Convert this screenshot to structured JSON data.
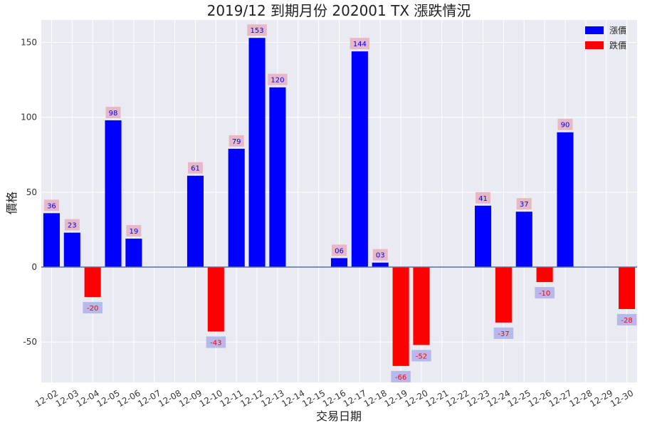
{
  "chart_data": {
    "type": "bar",
    "title": "2019/12 到期月份 202001 TX 漲跌情況",
    "xlabel": "交易日期",
    "ylabel": "價格",
    "categories": [
      "12-02",
      "12-03",
      "12-04",
      "12-05",
      "12-06",
      "12-07",
      "12-08",
      "12-09",
      "12-10",
      "12-11",
      "12-12",
      "12-13",
      "12-14",
      "12-15",
      "12-16",
      "12-17",
      "12-18",
      "12-19",
      "12-20",
      "12-21",
      "12-22",
      "12-23",
      "12-24",
      "12-25",
      "12-26",
      "12-27",
      "12-28",
      "12-29",
      "12-30"
    ],
    "series": [
      {
        "name": "漲價",
        "color": "#0000ff",
        "values": [
          36,
          23,
          0,
          98,
          19,
          0,
          0,
          61,
          0,
          79,
          153,
          120,
          0,
          0,
          6,
          144,
          3,
          0,
          0,
          0,
          0,
          41,
          0,
          37,
          0,
          90,
          0,
          0,
          0
        ]
      },
      {
        "name": "跌價",
        "color": "#ff0000",
        "values": [
          0,
          0,
          -20,
          0,
          0,
          0,
          0,
          0,
          -43,
          0,
          0,
          0,
          0,
          0,
          0,
          0,
          0,
          -66,
          -52,
          0,
          0,
          0,
          -37,
          0,
          -10,
          0,
          0,
          0,
          -28
        ]
      }
    ],
    "up_labels": [
      {
        "index": 0,
        "text": "36"
      },
      {
        "index": 1,
        "text": "23"
      },
      {
        "index": 3,
        "text": "98"
      },
      {
        "index": 4,
        "text": "19"
      },
      {
        "index": 7,
        "text": "61"
      },
      {
        "index": 9,
        "text": "79"
      },
      {
        "index": 10,
        "text": "153"
      },
      {
        "index": 11,
        "text": "120"
      },
      {
        "index": 14,
        "text": "06"
      },
      {
        "index": 15,
        "text": "144"
      },
      {
        "index": 16,
        "text": "03"
      },
      {
        "index": 21,
        "text": "41"
      },
      {
        "index": 23,
        "text": "37"
      },
      {
        "index": 25,
        "text": "90"
      }
    ],
    "down_labels": [
      {
        "index": 2,
        "text": "-20"
      },
      {
        "index": 8,
        "text": "-43"
      },
      {
        "index": 17,
        "text": "-66"
      },
      {
        "index": 18,
        "text": "-52"
      },
      {
        "index": 22,
        "text": "-37"
      },
      {
        "index": 24,
        "text": "-10"
      },
      {
        "index": 28,
        "text": "-28"
      }
    ],
    "yticks": [
      -50,
      0,
      50,
      100,
      150
    ],
    "ylim": [
      -77,
      165
    ],
    "grid": true,
    "legend": "top-right",
    "colors": {
      "background": "#eaeaf2",
      "grid": "#ffffff",
      "zero_line": "#4c72b0",
      "up_label_box": "#e6b8c8",
      "down_label_box": "#b8b8ec",
      "up_label_text": "#0000ff",
      "down_label_text": "#ff0000"
    }
  }
}
